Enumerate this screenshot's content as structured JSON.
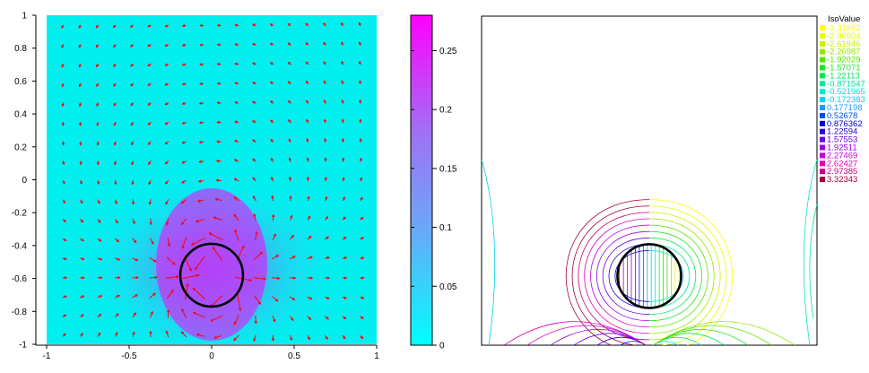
{
  "chart_data": [
    {
      "type": "heatmap",
      "subtype": "vector-field",
      "xlim": [
        -1,
        1
      ],
      "ylim": [
        -1,
        1
      ],
      "x_ticks": [
        "-1",
        "-0.5",
        "0",
        "0.5",
        "1"
      ],
      "y_ticks": [
        "-1",
        "-0.8",
        "-0.6",
        "-0.4",
        "-0.2",
        "0",
        "0.2",
        "0.4",
        "0.6",
        "0.8",
        "1"
      ],
      "colorbar": {
        "min": 0,
        "max": 0.28,
        "ticks": [
          "0",
          "0.05",
          "0.1",
          "0.15",
          "0.2",
          "0.25"
        ],
        "colors": [
          "#00ffff",
          "#ff00ff"
        ]
      },
      "obstacle": {
        "shape": "circle",
        "center": [
          0,
          -0.58
        ],
        "radius": 0.19,
        "stroke": "#000000"
      },
      "arrow_color": "#ff0000",
      "background_color": "#00f0f0"
    },
    {
      "type": "contour",
      "legend_title": "IsoValue",
      "legend_position": "top-right",
      "levels": [
        {
          "label": "-3.31862",
          "color": "#ffff00"
        },
        {
          "label": "-2.96904",
          "color": "#e6ff00"
        },
        {
          "label": "-2.61946",
          "color": "#c8f000"
        },
        {
          "label": "-2.26987",
          "color": "#96e600"
        },
        {
          "label": "-1.92029",
          "color": "#55e600"
        },
        {
          "label": "-1.57071",
          "color": "#1ee61e"
        },
        {
          "label": "-1.22113",
          "color": "#00e65a"
        },
        {
          "label": "-0.871547",
          "color": "#00e69b"
        },
        {
          "label": "-0.521965",
          "color": "#00e6d2"
        },
        {
          "label": "-0.172383",
          "color": "#00d2f0"
        },
        {
          "label": "0.177198",
          "color": "#2896ff"
        },
        {
          "label": "0.52678",
          "color": "#0050e6"
        },
        {
          "label": "0.876362",
          "color": "#0000c8"
        },
        {
          "label": "1.22594",
          "color": "#2800dc"
        },
        {
          "label": "1.57553",
          "color": "#6400e6"
        },
        {
          "label": "1.92511",
          "color": "#9600e6"
        },
        {
          "label": "2.27469",
          "color": "#c800dc"
        },
        {
          "label": "2.62427",
          "color": "#dc00b4"
        },
        {
          "label": "2.97385",
          "color": "#c8007d"
        },
        {
          "label": "3.32343",
          "color": "#a0003c"
        }
      ],
      "obstacle": {
        "shape": "circle",
        "center": [
          0,
          -0.58
        ],
        "radius": 0.19,
        "stroke": "#000000"
      }
    }
  ]
}
